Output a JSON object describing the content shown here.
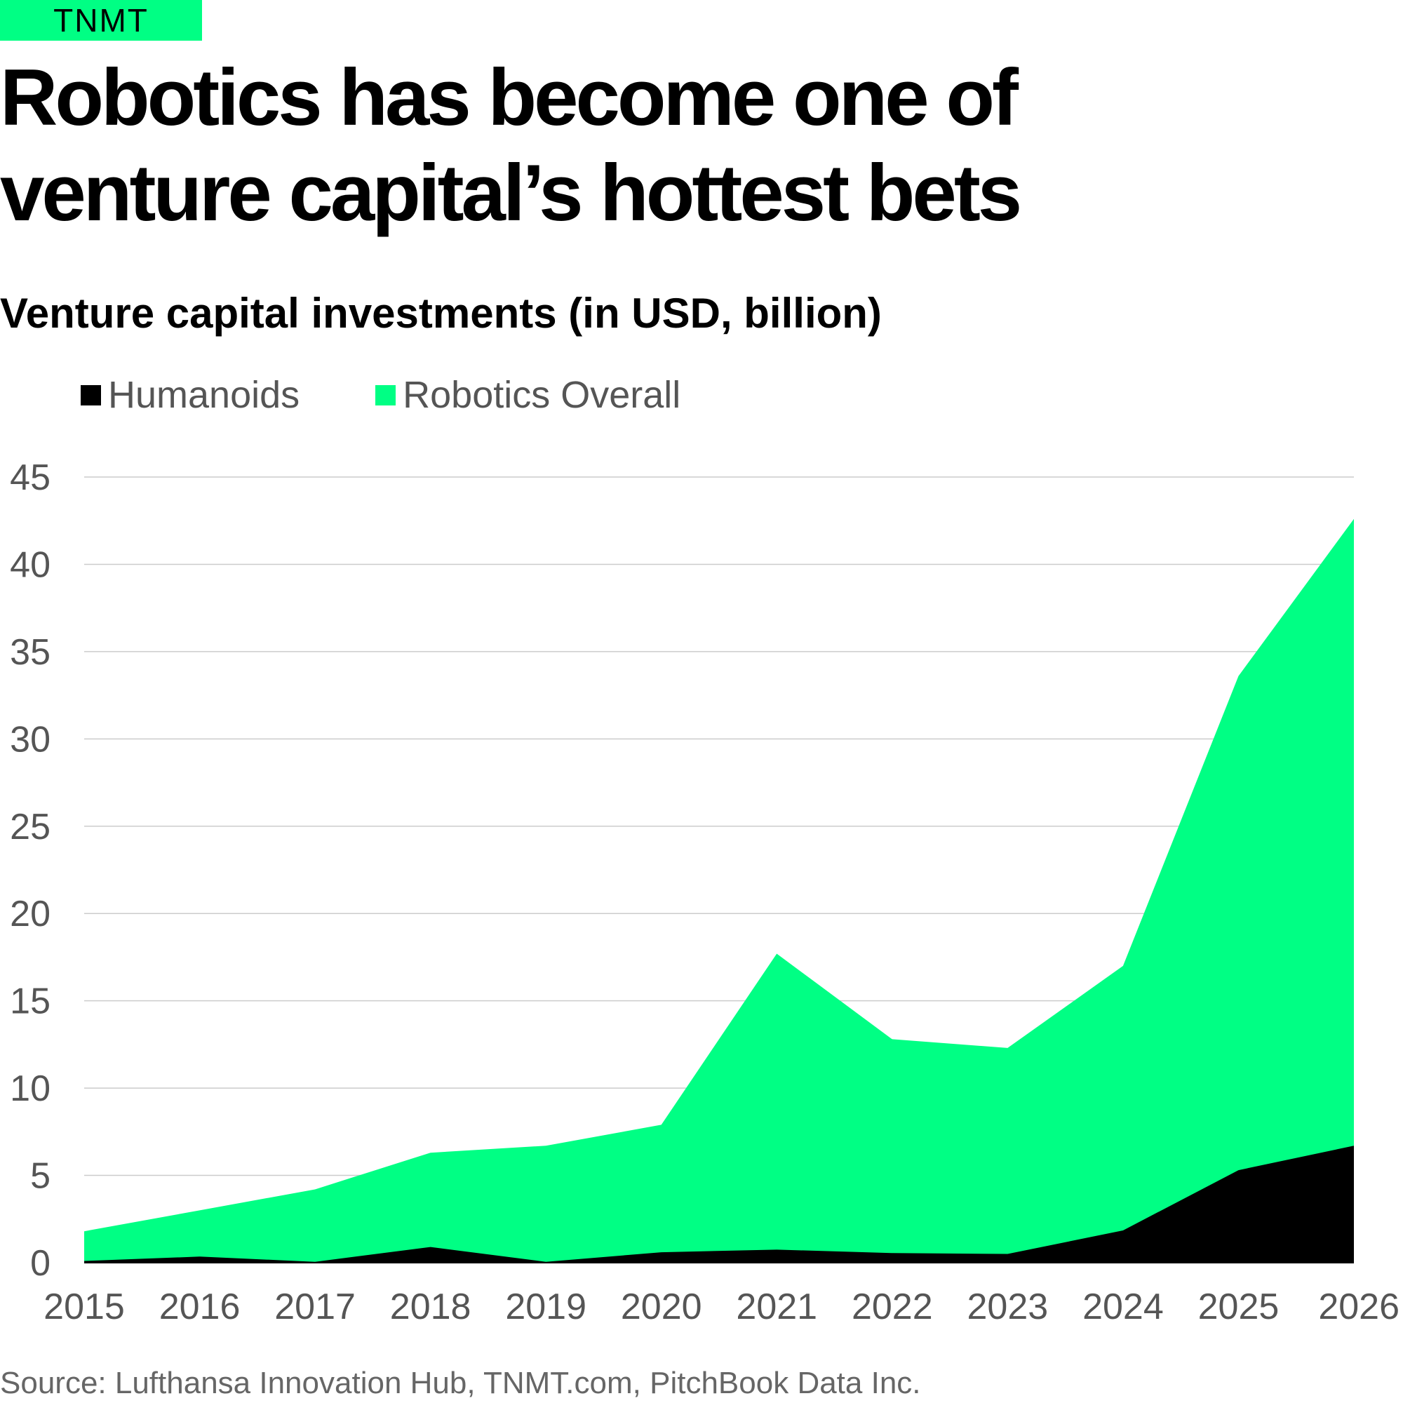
{
  "brand": {
    "logo_text": "TNMT",
    "accent_color": "#00ff84"
  },
  "headline": "Robotics has become one of venture capital’s hottest bets",
  "source": "Source: Lufthansa Innovation Hub, TNMT.com, PitchBook Data Inc.",
  "chart_data": {
    "type": "area",
    "title": "Venture capital investments (in USD, billion)",
    "x": [
      "2015",
      "2016",
      "2017",
      "2018",
      "2019",
      "2020",
      "2021",
      "2022",
      "2023",
      "2024",
      "2025",
      "2026"
    ],
    "series": [
      {
        "name": "Robotics Overall",
        "color": "#00ff84",
        "values": [
          1.8,
          3.0,
          4.2,
          6.3,
          6.7,
          7.9,
          17.7,
          12.8,
          12.3,
          17.0,
          33.6,
          42.6
        ]
      },
      {
        "name": "Humanoids",
        "color": "#000000",
        "values": [
          0.1,
          0.35,
          0.05,
          0.9,
          0.05,
          0.6,
          0.75,
          0.55,
          0.5,
          1.85,
          5.3,
          6.7
        ]
      }
    ],
    "ylim": [
      0,
      45
    ],
    "yticks": [
      "0",
      "5",
      "10",
      "15",
      "20",
      "25",
      "30",
      "35",
      "40",
      "45"
    ],
    "grid": true,
    "legend_position": "top-left",
    "legend_order": [
      "Humanoids",
      "Robotics Overall"
    ]
  }
}
